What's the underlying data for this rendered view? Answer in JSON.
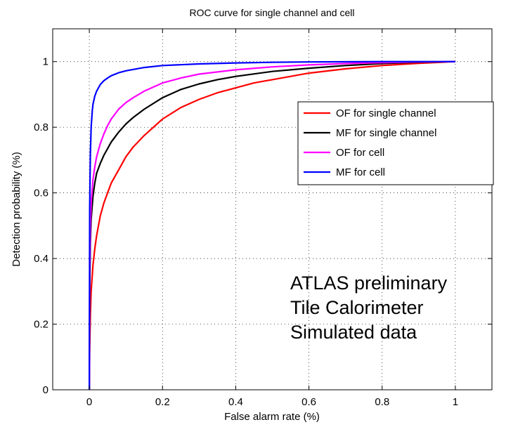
{
  "chart_data": {
    "type": "line",
    "title": "ROC curve for single channel and cell",
    "xlabel": "False alarm rate (%)",
    "ylabel": "Detection probability (%)",
    "xlim": [
      -0.1,
      1.1
    ],
    "ylim": [
      0,
      1.1
    ],
    "xticks": [
      0,
      0.2,
      0.4,
      0.6,
      0.8,
      1
    ],
    "yticks": [
      0,
      0.2,
      0.4,
      0.6,
      0.8,
      1
    ],
    "xtick_labels": [
      "0",
      "0.2",
      "0.4",
      "0.6",
      "0.8",
      "1"
    ],
    "ytick_labels": [
      "0",
      "0.2",
      "0.4",
      "0.6",
      "0.8",
      "1"
    ],
    "grid": true,
    "legend_position": "upper-right",
    "series": [
      {
        "name": "OF for single channel",
        "color": "#ff0000",
        "x": [
          0,
          0.001,
          0.003,
          0.005,
          0.01,
          0.015,
          0.02,
          0.03,
          0.04,
          0.05,
          0.06,
          0.08,
          0.1,
          0.12,
          0.15,
          0.2,
          0.25,
          0.3,
          0.35,
          0.4,
          0.45,
          0.5,
          0.6,
          0.7,
          0.8,
          0.9,
          1.0
        ],
        "y": [
          0,
          0.12,
          0.23,
          0.3,
          0.38,
          0.43,
          0.47,
          0.53,
          0.57,
          0.6,
          0.63,
          0.67,
          0.71,
          0.74,
          0.775,
          0.825,
          0.86,
          0.885,
          0.905,
          0.92,
          0.935,
          0.945,
          0.965,
          0.978,
          0.988,
          0.995,
          1.0
        ]
      },
      {
        "name": "MF for single channel",
        "color": "#000000",
        "x": [
          0,
          0.001,
          0.003,
          0.005,
          0.01,
          0.015,
          0.02,
          0.03,
          0.04,
          0.05,
          0.06,
          0.08,
          0.1,
          0.12,
          0.15,
          0.2,
          0.25,
          0.3,
          0.35,
          0.4,
          0.5,
          0.6,
          0.7,
          0.8,
          0.9,
          1.0
        ],
        "y": [
          0,
          0.3,
          0.45,
          0.52,
          0.59,
          0.63,
          0.66,
          0.69,
          0.715,
          0.735,
          0.755,
          0.785,
          0.81,
          0.83,
          0.855,
          0.89,
          0.915,
          0.932,
          0.945,
          0.955,
          0.97,
          0.98,
          0.988,
          0.994,
          0.998,
          1.0
        ]
      },
      {
        "name": "OF for cell",
        "color": "#ff00ff",
        "x": [
          0,
          0.001,
          0.003,
          0.005,
          0.01,
          0.015,
          0.02,
          0.03,
          0.04,
          0.05,
          0.06,
          0.08,
          0.1,
          0.12,
          0.15,
          0.2,
          0.25,
          0.3,
          0.4,
          0.5,
          0.6,
          0.7,
          0.8,
          0.9,
          1.0
        ],
        "y": [
          0,
          0.35,
          0.5,
          0.57,
          0.64,
          0.68,
          0.71,
          0.75,
          0.78,
          0.805,
          0.825,
          0.855,
          0.875,
          0.89,
          0.91,
          0.935,
          0.95,
          0.962,
          0.975,
          0.984,
          0.99,
          0.994,
          0.997,
          0.999,
          1.0
        ]
      },
      {
        "name": "MF for cell",
        "color": "#0000ff",
        "x": [
          0,
          0.001,
          0.003,
          0.005,
          0.008,
          0.01,
          0.015,
          0.02,
          0.03,
          0.04,
          0.05,
          0.06,
          0.08,
          0.1,
          0.15,
          0.2,
          0.3,
          0.4,
          0.5,
          0.6,
          0.8,
          1.0
        ],
        "y": [
          0,
          0.55,
          0.72,
          0.8,
          0.85,
          0.87,
          0.895,
          0.91,
          0.93,
          0.942,
          0.95,
          0.957,
          0.966,
          0.972,
          0.982,
          0.988,
          0.993,
          0.996,
          0.998,
          0.999,
          1.0,
          1.0
        ]
      }
    ],
    "annotations": [
      "ATLAS preliminary",
      "Tile Calorimeter",
      "Simulated data"
    ]
  }
}
